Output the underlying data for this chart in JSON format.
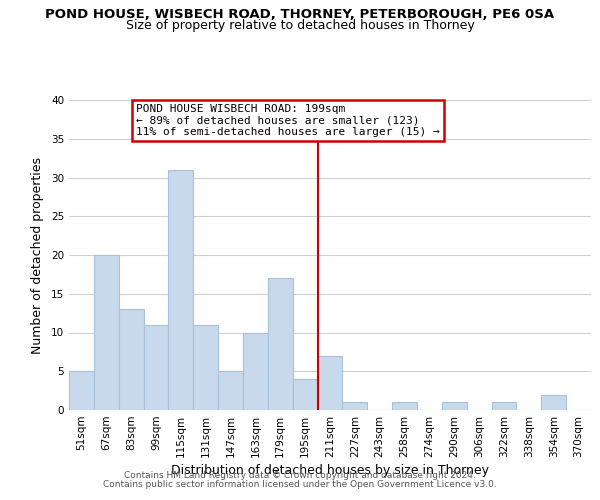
{
  "title": "POND HOUSE, WISBECH ROAD, THORNEY, PETERBOROUGH, PE6 0SA",
  "subtitle": "Size of property relative to detached houses in Thorney",
  "xlabel": "Distribution of detached houses by size in Thorney",
  "ylabel": "Number of detached properties",
  "bin_labels": [
    "51sqm",
    "67sqm",
    "83sqm",
    "99sqm",
    "115sqm",
    "131sqm",
    "147sqm",
    "163sqm",
    "179sqm",
    "195sqm",
    "211sqm",
    "227sqm",
    "243sqm",
    "258sqm",
    "274sqm",
    "290sqm",
    "306sqm",
    "322sqm",
    "338sqm",
    "354sqm",
    "370sqm"
  ],
  "bar_values": [
    5,
    20,
    13,
    11,
    31,
    11,
    5,
    10,
    17,
    4,
    7,
    1,
    0,
    1,
    0,
    1,
    0,
    1,
    0,
    2,
    0
  ],
  "bar_color": "#c8d9ec",
  "bar_edge_color": "#a8c0d8",
  "reference_line_x": 9.5,
  "reference_label": "POND HOUSE WISBECH ROAD: 199sqm",
  "annotation_line1": "← 89% of detached houses are smaller (123)",
  "annotation_line2": "11% of semi-detached houses are larger (15) →",
  "annotation_box_color": "#ffffff",
  "annotation_box_edge_color": "#cc0000",
  "ylim": [
    0,
    40
  ],
  "yticks": [
    0,
    5,
    10,
    15,
    20,
    25,
    30,
    35,
    40
  ],
  "footer1": "Contains HM Land Registry data © Crown copyright and database right 2024.",
  "footer2": "Contains public sector information licensed under the Open Government Licence v3.0.",
  "background_color": "#ffffff",
  "grid_color": "#d0d0d0",
  "title_fontsize": 9.5,
  "subtitle_fontsize": 9.0,
  "label_fontsize": 9.0,
  "tick_fontsize": 7.5,
  "annotation_fontsize": 8.0,
  "footer_fontsize": 6.5
}
